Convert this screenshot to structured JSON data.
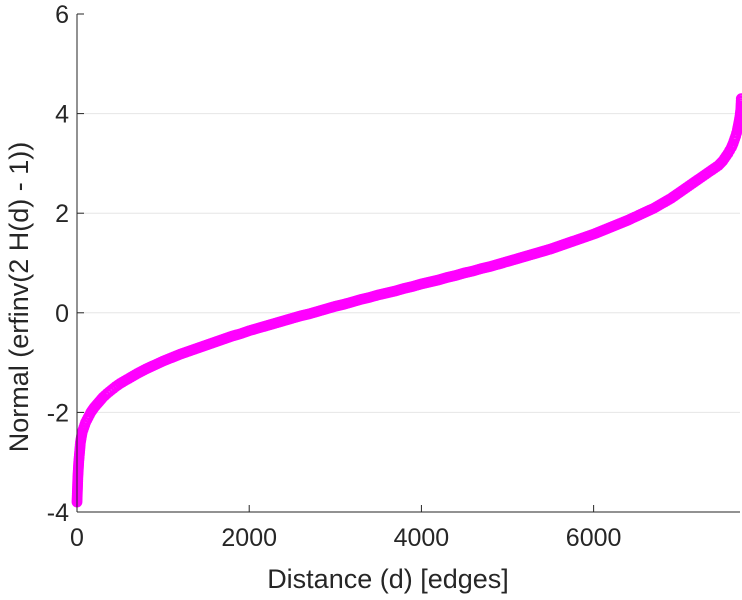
{
  "chart_data": {
    "type": "scatter",
    "title": "",
    "xlabel": "Distance (d) [edges]",
    "ylabel": "Normal (erfinv(2 H(d) - 1))",
    "xlim": [
      0,
      7700
    ],
    "ylim": [
      -4,
      6
    ],
    "xticks": [
      0,
      2000,
      4000,
      6000
    ],
    "xtick_labels": [
      "0",
      "2000",
      "4000",
      "6000"
    ],
    "yticks": [
      -4,
      -2,
      0,
      2,
      4,
      6
    ],
    "ytick_labels": [
      "-4",
      "-2",
      "0",
      "2",
      "4",
      "6"
    ],
    "grid": true,
    "legend": "none",
    "marker": "circle",
    "color": "#ff00ff",
    "series": [
      {
        "x": [
          0,
          10,
          20,
          30,
          40,
          60,
          80,
          100,
          130,
          160,
          200,
          250,
          300,
          350,
          400,
          450,
          500,
          550,
          600,
          700,
          800,
          900,
          1000,
          1100,
          1200,
          1300,
          1400,
          1500,
          1600,
          1700,
          1800,
          1900,
          2000,
          2100,
          2200,
          2300,
          2400,
          2500,
          2600,
          2700,
          2800,
          2900,
          3000,
          3100,
          3200,
          3300,
          3400,
          3500,
          3600,
          3700,
          3800,
          3900,
          4000,
          4100,
          4200,
          4300,
          4400,
          4500,
          4600,
          4700,
          4800,
          4900,
          5000,
          5100,
          5200,
          5300,
          5400,
          5500,
          5600,
          5700,
          5800,
          5900,
          6000,
          6100,
          6200,
          6300,
          6400,
          6500,
          6600,
          6700,
          6800,
          6900,
          7000,
          7050,
          7100,
          7150,
          7200,
          7250,
          7300,
          7350,
          7400,
          7450,
          7500,
          7520,
          7540,
          7560,
          7580,
          7600,
          7610,
          7620,
          7630,
          7640,
          7650,
          7660,
          7670,
          7680,
          7690,
          7700,
          7710,
          7715
        ],
        "y": [
          -3.8,
          -3.3,
          -3.0,
          -2.8,
          -2.6,
          -2.4,
          -2.3,
          -2.2,
          -2.1,
          -2.0,
          -1.9,
          -1.8,
          -1.7,
          -1.62,
          -1.55,
          -1.48,
          -1.42,
          -1.37,
          -1.32,
          -1.22,
          -1.13,
          -1.05,
          -0.97,
          -0.9,
          -0.83,
          -0.77,
          -0.71,
          -0.65,
          -0.59,
          -0.53,
          -0.47,
          -0.42,
          -0.36,
          -0.31,
          -0.26,
          -0.21,
          -0.16,
          -0.11,
          -0.06,
          -0.02,
          0.03,
          0.08,
          0.13,
          0.17,
          0.22,
          0.27,
          0.31,
          0.36,
          0.4,
          0.44,
          0.49,
          0.53,
          0.58,
          0.62,
          0.66,
          0.71,
          0.75,
          0.8,
          0.84,
          0.89,
          0.93,
          0.98,
          1.03,
          1.08,
          1.13,
          1.18,
          1.23,
          1.28,
          1.34,
          1.4,
          1.46,
          1.52,
          1.58,
          1.65,
          1.72,
          1.79,
          1.86,
          1.94,
          2.02,
          2.1,
          2.2,
          2.3,
          2.42,
          2.48,
          2.54,
          2.6,
          2.66,
          2.72,
          2.78,
          2.84,
          2.9,
          2.96,
          3.05,
          3.1,
          3.15,
          3.2,
          3.26,
          3.32,
          3.36,
          3.4,
          3.45,
          3.5,
          3.55,
          3.61,
          3.68,
          3.76,
          3.85,
          3.95,
          4.1,
          4.3
        ]
      }
    ]
  }
}
